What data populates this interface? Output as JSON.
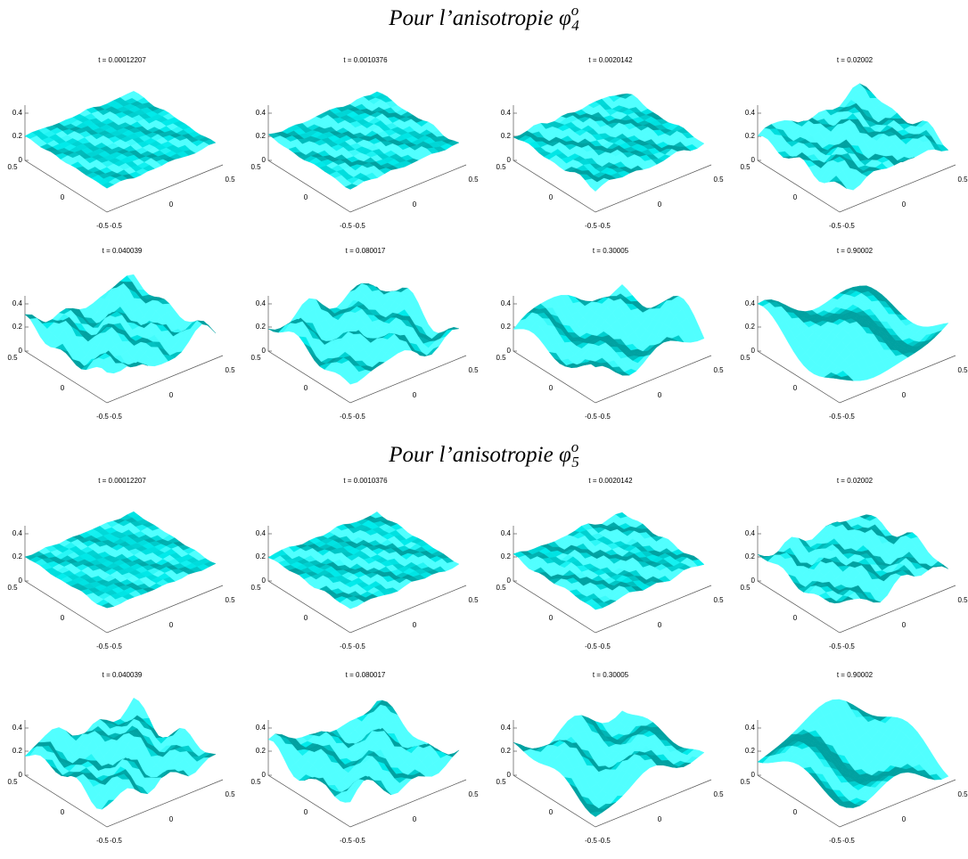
{
  "axes": {
    "zticks": [
      "0",
      "0.2",
      "0.4"
    ],
    "xticks": [
      "-0.5",
      "0",
      "0.5"
    ],
    "yticks": [
      "0.5",
      "0",
      "-0.5"
    ]
  },
  "sections": [
    {
      "title": "Pour l’anisotropie",
      "symbol": "φ",
      "superscript": "o",
      "subscript": "4",
      "panels": [
        "t = 0.00012207",
        "t = 0.0010376",
        "t = 0.0020142",
        "t = 0.02002",
        "t = 0.040039",
        "t = 0.080017",
        "t = 0.30005",
        "t = 0.90002"
      ]
    },
    {
      "title": "Pour l’anisotropie",
      "symbol": "φ",
      "superscript": "o",
      "subscript": "5",
      "panels": [
        "t = 0.00012207",
        "t = 0.0010376",
        "t = 0.0020142",
        "t = 0.02002",
        "t = 0.040039",
        "t = 0.080017",
        "t = 0.30005",
        "t = 0.90002"
      ]
    }
  ]
}
